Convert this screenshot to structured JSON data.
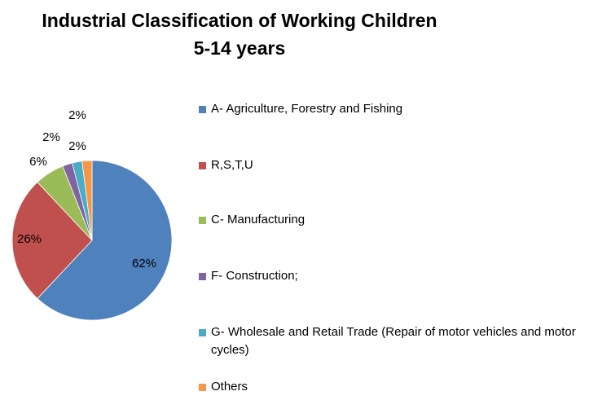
{
  "chart_data": {
    "type": "pie",
    "title": "Industrial Classification of Working Children",
    "subtitle": "5-14 years",
    "legend_position": "right",
    "slices": [
      {
        "label": "A- Agriculture, Forestry and Fishing",
        "value": 62,
        "display": "62%",
        "color": "#4f81bd"
      },
      {
        "label": "R,S,T,U",
        "value": 26,
        "display": "26%",
        "color": "#c0504d"
      },
      {
        "label": "C- Manufacturing",
        "value": 6,
        "display": "6%",
        "color": "#9bbb59"
      },
      {
        "label": "F- Construction;",
        "value": 2,
        "display": "2%",
        "color": "#8064a2"
      },
      {
        "label": "G- Wholesale and Retail Trade (Repair of motor vehicles and motor cycles)",
        "value": 2,
        "display": "2%",
        "color": "#4bacc6"
      },
      {
        "label": "Others",
        "value": 2,
        "display": "2%",
        "color": "#f79646"
      }
    ]
  }
}
